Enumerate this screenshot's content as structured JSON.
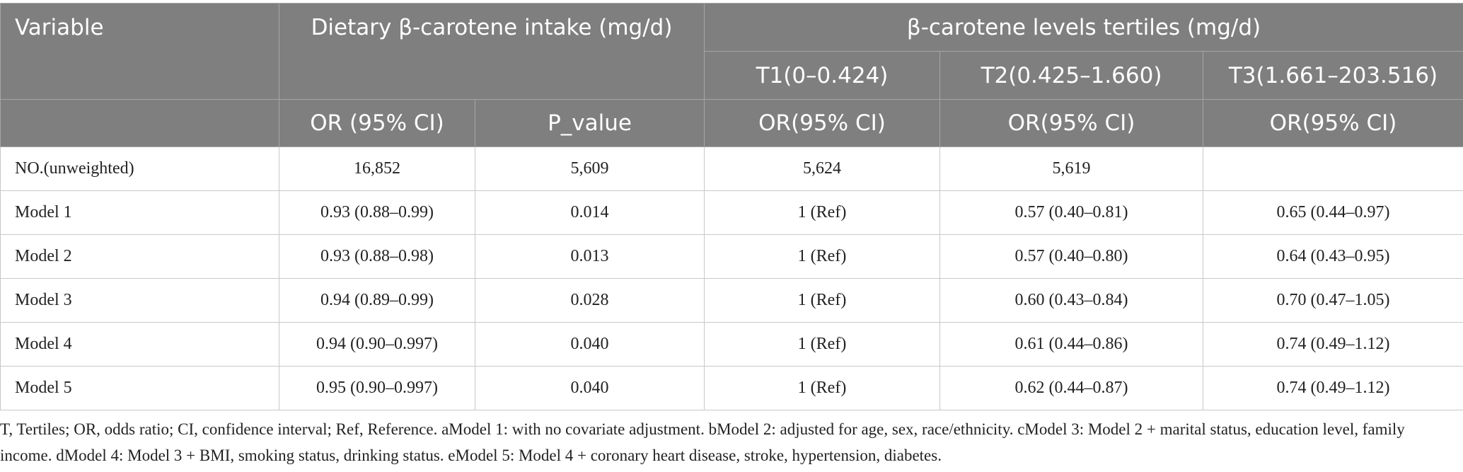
{
  "table": {
    "header": {
      "variable": "Variable",
      "group1": "Dietary β-carotene intake (mg/d)",
      "group2": "β-carotene levels tertiles (mg/d)",
      "tertiles": [
        "T1(0–0.424)",
        "T2(0.425–1.660)",
        "T3(1.661–203.516)"
      ],
      "sub": [
        "OR (95% CI)",
        "P_value",
        "OR(95% CI)",
        "OR(95% CI)",
        "OR(95% CI)"
      ]
    },
    "rows": [
      [
        "NO.(unweighted)",
        "16,852",
        "5,609",
        "5,624",
        "5,619"
      ],
      [
        "Model 1",
        "0.93 (0.88–0.99)",
        "0.014",
        "1 (Ref)",
        "0.57 (0.40–0.81)",
        "0.65 (0.44–0.97)"
      ],
      [
        "Model 2",
        "0.93 (0.88–0.98)",
        "0.013",
        "1 (Ref)",
        "0.57 (0.40–0.80)",
        "0.64 (0.43–0.95)"
      ],
      [
        "Model 3",
        "0.94 (0.89–0.99)",
        "0.028",
        "1 (Ref)",
        "0.60 (0.43–0.84)",
        "0.70 (0.47–1.05)"
      ],
      [
        "Model 4",
        "0.94 (0.90–0.997)",
        "0.040",
        "1 (Ref)",
        "0.61 (0.44–0.86)",
        "0.74 (0.49–1.12)"
      ],
      [
        "Model 5",
        "0.95 (0.90–0.997)",
        "0.040",
        "1 (Ref)",
        "0.62 (0.44–0.87)",
        "0.74 (0.49–1.12)"
      ]
    ],
    "footnote": "T, Tertiles; OR, odds ratio; CI, confidence interval; Ref, Reference. aModel 1: with no covariate adjustment. bModel 2: adjusted for age, sex, race/ethnicity. cModel 3: Model 2 + marital status, education level, family income. dModel 4: Model 3 + BMI, smoking status, drinking status. eModel 5: Model 4 + coronary heart disease, stroke, hypertension, diabetes."
  }
}
